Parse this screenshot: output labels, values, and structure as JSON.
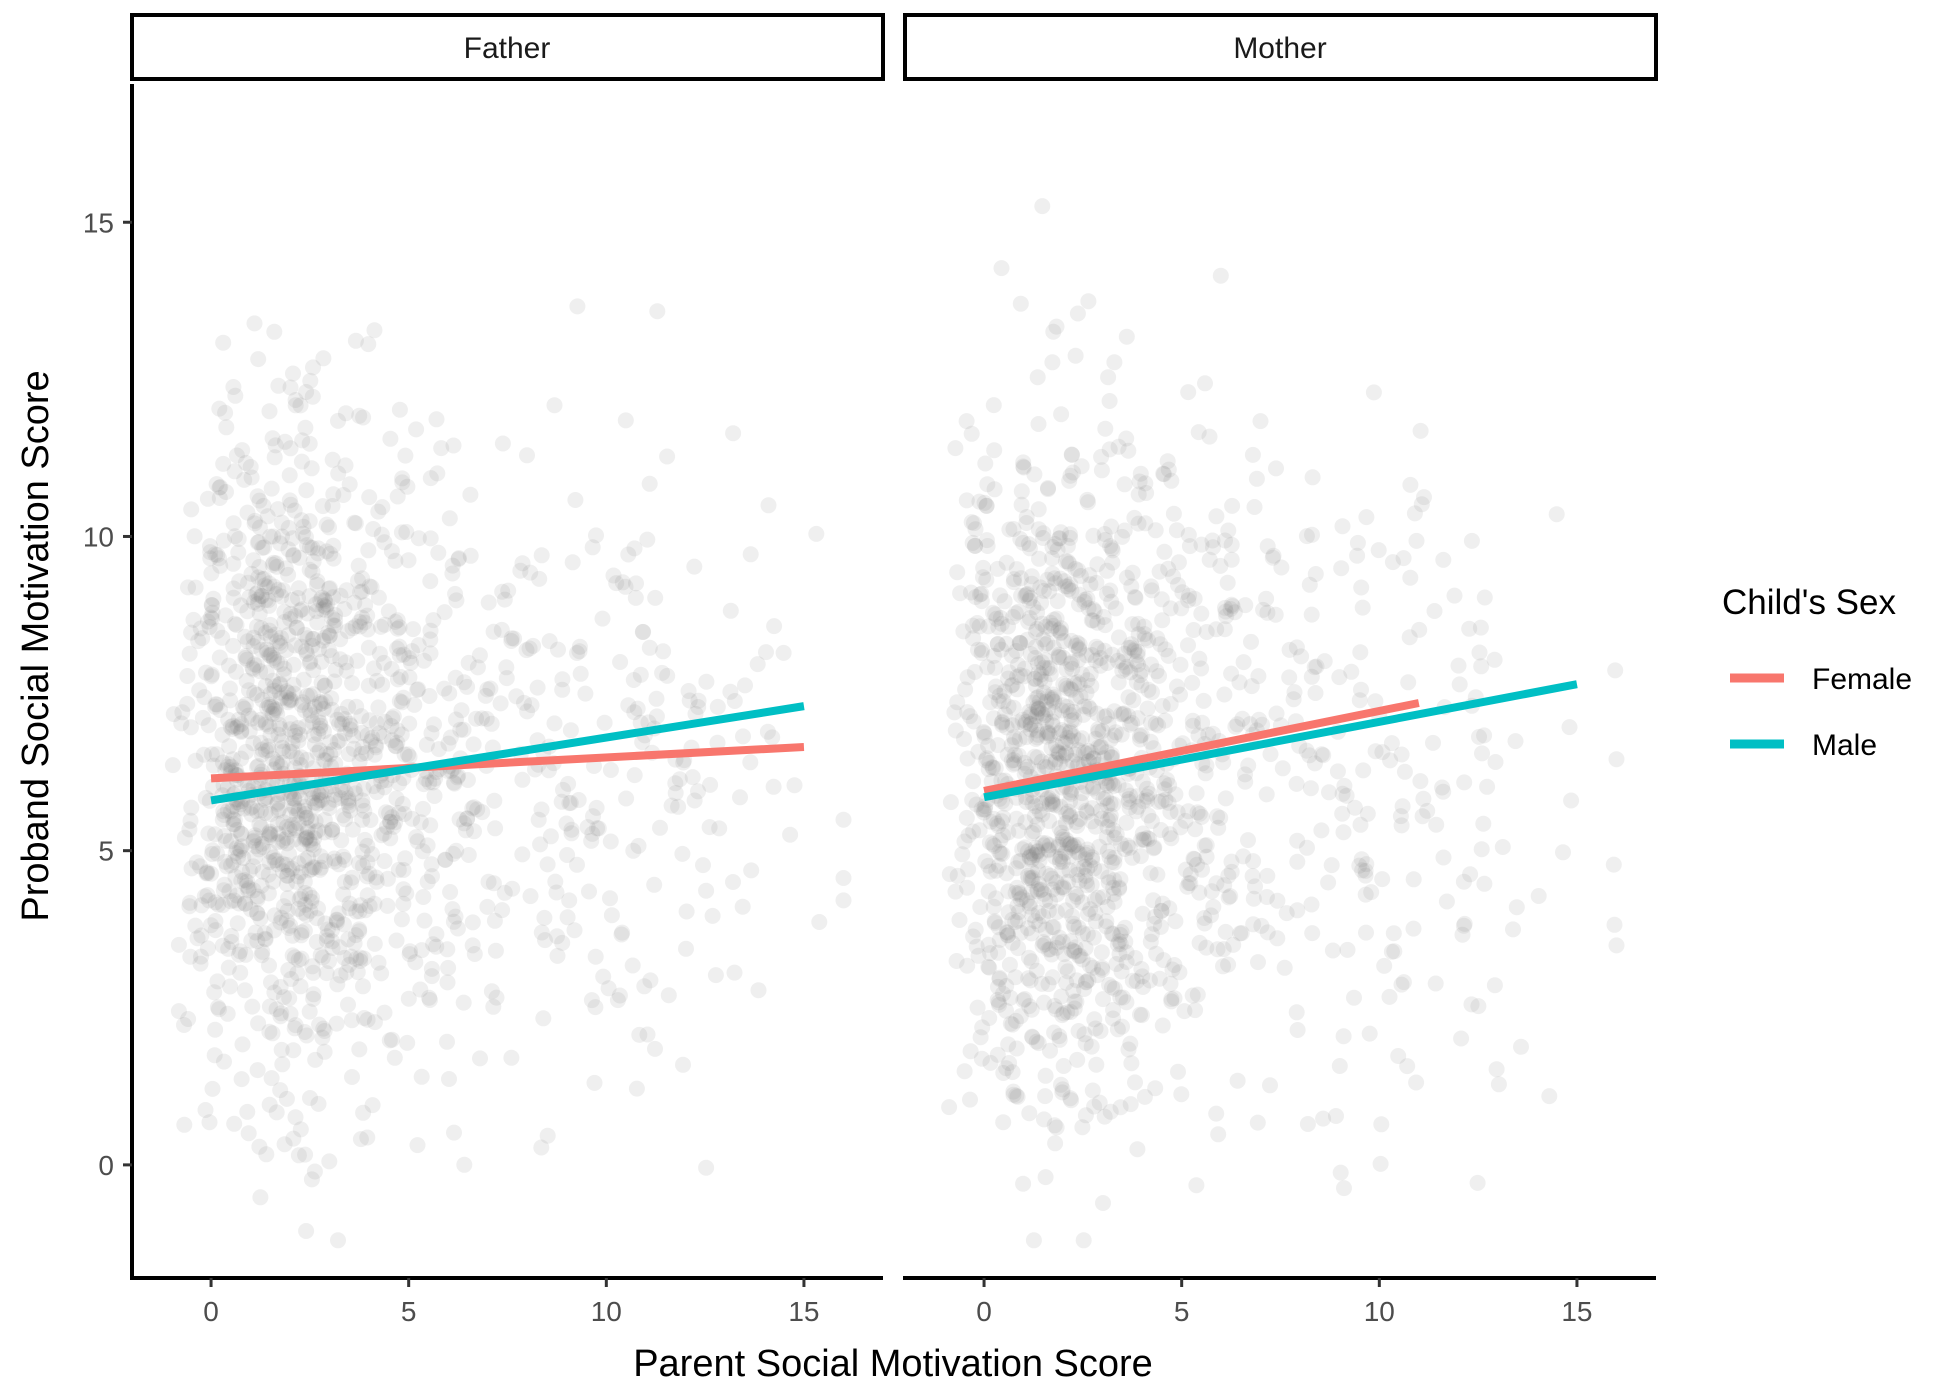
{
  "chart_data": {
    "type": "scatter",
    "xlabel": "Parent Social Motivation Score",
    "ylabel": "Proband Social Motivation Score",
    "xlim": [
      -2,
      17
    ],
    "ylim": [
      -1.8,
      17.2
    ],
    "x_ticks": [
      0,
      5,
      10,
      15
    ],
    "y_ticks": [
      0,
      5,
      10,
      15
    ],
    "facets": [
      {
        "label": "Father",
        "lines": [
          {
            "name": "Female",
            "x": [
              0,
              15
            ],
            "y": [
              6.15,
              6.65
            ]
          },
          {
            "name": "Male",
            "x": [
              0,
              15
            ],
            "y": [
              5.8,
              7.3
            ]
          }
        ],
        "point_density": {
          "x_center": 2.2,
          "x_spread": 3.2,
          "y_center": 6.3,
          "y_spread": 3.6,
          "count": 1500,
          "seed": 11
        }
      },
      {
        "label": "Mother",
        "lines": [
          {
            "name": "Female",
            "x": [
              0,
              11
            ],
            "y": [
              5.95,
              7.35
            ]
          },
          {
            "name": "Male",
            "x": [
              0,
              15
            ],
            "y": [
              5.85,
              7.65
            ]
          }
        ],
        "point_density": {
          "x_center": 2.0,
          "x_spread": 3.0,
          "y_center": 6.2,
          "y_spread": 3.7,
          "count": 1500,
          "seed": 29
        }
      }
    ],
    "grid": false,
    "legend": {
      "title": "Child's Sex",
      "position": "right",
      "entries": [
        {
          "name": "Female",
          "color": "#F8766D"
        },
        {
          "name": "Male",
          "color": "#00BFC4"
        }
      ]
    },
    "point_color": "#7f7f7f",
    "point_opacity": 0.12
  }
}
